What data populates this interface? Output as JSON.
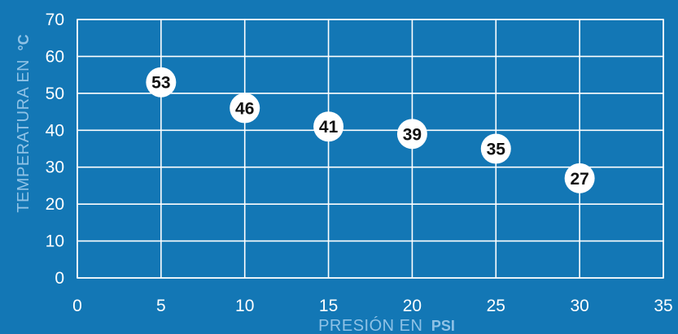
{
  "chart_data": {
    "type": "scatter",
    "title": "",
    "xlabel": "PRESIÓN EN",
    "xlabel_unit": "PSI",
    "ylabel": "TEMPERATURA EN",
    "ylabel_unit": "°C",
    "xlim": [
      0,
      35
    ],
    "ylim": [
      0,
      70
    ],
    "x_ticks": [
      0,
      5,
      10,
      15,
      20,
      25,
      30,
      35
    ],
    "y_ticks": [
      0,
      10,
      20,
      30,
      40,
      50,
      60,
      70
    ],
    "grid": true,
    "points": [
      {
        "x": 5,
        "y": 53,
        "label": "53"
      },
      {
        "x": 10,
        "y": 46,
        "label": "46"
      },
      {
        "x": 15,
        "y": 41,
        "label": "41"
      },
      {
        "x": 20,
        "y": 39,
        "label": "39"
      },
      {
        "x": 25,
        "y": 35,
        "label": "35"
      },
      {
        "x": 30,
        "y": 27,
        "label": "27"
      }
    ],
    "colors": {
      "background": "#1377b5",
      "grid": "#ffffff",
      "point": "#ffffff",
      "label": "#111111",
      "axis_title": "#8fc2e6"
    }
  }
}
